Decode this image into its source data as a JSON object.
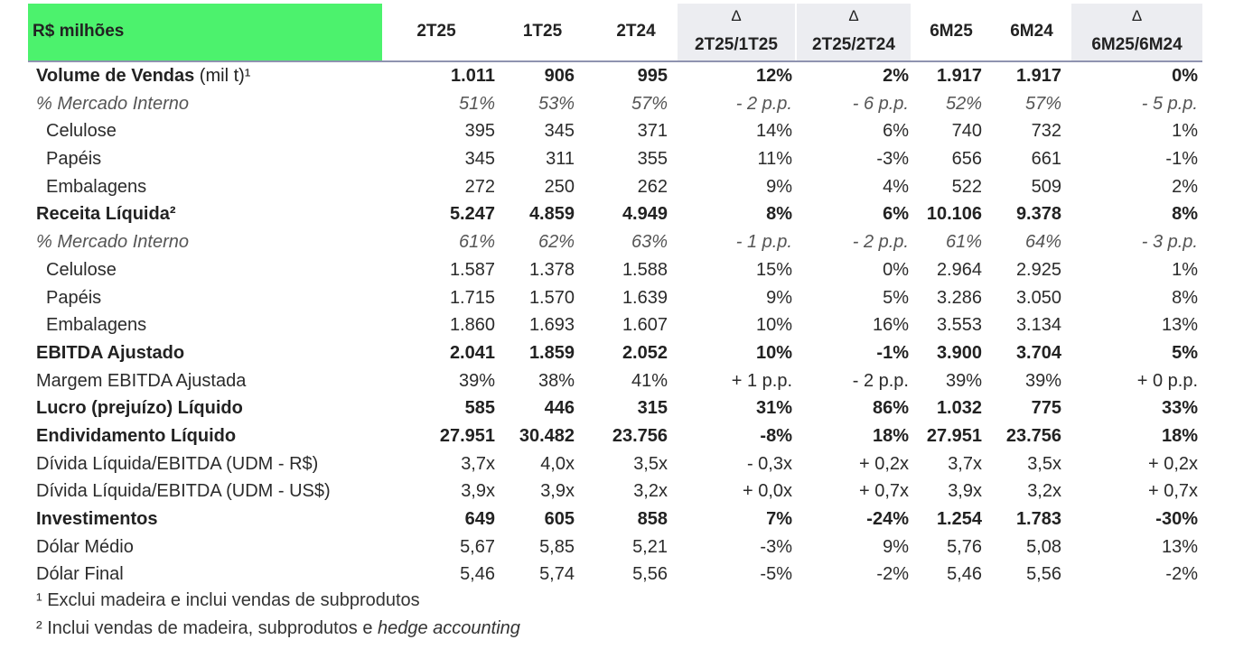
{
  "header": {
    "label": "R$ milhões",
    "cols": {
      "c2t25": "2T25",
      "c1t25": "1T25",
      "c2t24": "2T24",
      "d1_sym": "Δ",
      "d1_sub": "2T25/1T25",
      "d2_sym": "Δ",
      "d2_sub": "2T25/2T24",
      "c6m25": "6M25",
      "c6m24": "6M24",
      "d3_sym": "Δ",
      "d3_sub": "6M25/6M24"
    }
  },
  "rows": [
    {
      "label": "Volume de Vendas",
      "unit": " (mil t)¹",
      "style": "bold",
      "values": [
        "1.011",
        "906",
        "995",
        "12%",
        "2%",
        "1.917",
        "1.917",
        "0%"
      ]
    },
    {
      "label": "% Mercado Interno",
      "style": "ital",
      "values": [
        "51%",
        "53%",
        "57%",
        "- 2 p.p.",
        "- 6 p.p.",
        "52%",
        "57%",
        "- 5 p.p."
      ]
    },
    {
      "label": "Celulose",
      "style": "ind",
      "values": [
        "395",
        "345",
        "371",
        "14%",
        "6%",
        "740",
        "732",
        "1%"
      ]
    },
    {
      "label": "Papéis",
      "style": "ind",
      "values": [
        "345",
        "311",
        "355",
        "11%",
        "-3%",
        "656",
        "661",
        "-1%"
      ]
    },
    {
      "label": "Embalagens",
      "style": "ind",
      "values": [
        "272",
        "250",
        "262",
        "9%",
        "4%",
        "522",
        "509",
        "2%"
      ]
    },
    {
      "label": "Receita Líquida²",
      "style": "bold",
      "values": [
        "5.247",
        "4.859",
        "4.949",
        "8%",
        "6%",
        "10.106",
        "9.378",
        "8%"
      ]
    },
    {
      "label": "% Mercado Interno",
      "style": "ital",
      "values": [
        "61%",
        "62%",
        "63%",
        "- 1 p.p.",
        "- 2 p.p.",
        "61%",
        "64%",
        "- 3 p.p."
      ]
    },
    {
      "label": "Celulose",
      "style": "ind",
      "values": [
        "1.587",
        "1.378",
        "1.588",
        "15%",
        "0%",
        "2.964",
        "2.925",
        "1%"
      ]
    },
    {
      "label": "Papéis",
      "style": "ind",
      "values": [
        "1.715",
        "1.570",
        "1.639",
        "9%",
        "5%",
        "3.286",
        "3.050",
        "8%"
      ]
    },
    {
      "label": "Embalagens",
      "style": "ind",
      "values": [
        "1.860",
        "1.693",
        "1.607",
        "10%",
        "16%",
        "3.553",
        "3.134",
        "13%"
      ]
    },
    {
      "label": "EBITDA Ajustado",
      "style": "bold",
      "values": [
        "2.041",
        "1.859",
        "2.052",
        "10%",
        "-1%",
        "3.900",
        "3.704",
        "5%"
      ]
    },
    {
      "label": "Margem EBITDA Ajustada",
      "style": "plain",
      "values": [
        "39%",
        "38%",
        "41%",
        "+ 1 p.p.",
        "- 2 p.p.",
        "39%",
        "39%",
        "+ 0 p.p."
      ]
    },
    {
      "label": "Lucro (prejuízo) Líquido",
      "style": "bold",
      "values": [
        "585",
        "446",
        "315",
        "31%",
        "86%",
        "1.032",
        "775",
        "33%"
      ]
    },
    {
      "label": "Endividamento Líquido",
      "style": "bold",
      "values": [
        "27.951",
        "30.482",
        "23.756",
        "-8%",
        "18%",
        "27.951",
        "23.756",
        "18%"
      ]
    },
    {
      "label": "Dívida Líquida/EBITDA (UDM - R$)",
      "style": "plain",
      "values": [
        "3,7x",
        "4,0x",
        "3,5x",
        "- 0,3x",
        "+ 0,2x",
        "3,7x",
        "3,5x",
        "+ 0,2x"
      ]
    },
    {
      "label": "Dívida Líquida/EBITDA (UDM - US$)",
      "style": "plain",
      "values": [
        "3,9x",
        "3,9x",
        "3,2x",
        "+ 0,0x",
        "+ 0,7x",
        "3,9x",
        "3,2x",
        "+ 0,7x"
      ]
    },
    {
      "label": "Investimentos",
      "style": "bold",
      "values": [
        "649",
        "605",
        "858",
        "7%",
        "-24%",
        "1.254",
        "1.783",
        "-30%"
      ]
    },
    {
      "label": "Dólar Médio",
      "style": "plain",
      "values": [
        "5,67",
        "5,85",
        "5,21",
        "-3%",
        "9%",
        "5,76",
        "5,08",
        "13%"
      ]
    },
    {
      "label": "Dólar Final",
      "style": "plain",
      "values": [
        "5,46",
        "5,74",
        "5,56",
        "-5%",
        "-2%",
        "5,46",
        "5,56",
        "-2%"
      ]
    }
  ],
  "footnotes": {
    "f1": "¹ Exclui madeira e inclui vendas de subprodutos",
    "f2_prefix": "² Inclui vendas de madeira, subprodutos e ",
    "f2_italic": "hedge accounting"
  }
}
